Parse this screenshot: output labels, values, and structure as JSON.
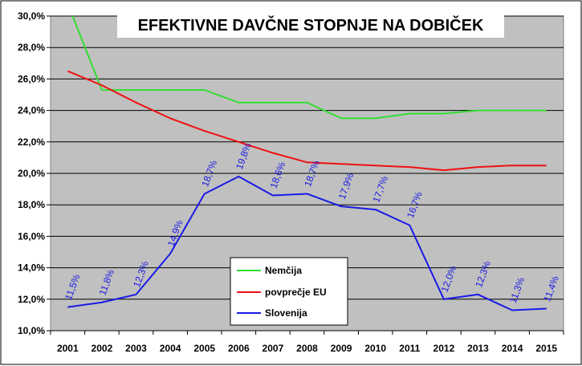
{
  "chart_data": {
    "type": "line",
    "title": "EFEKTIVNE DAVČNE STOPNJE NA DOBIČEK",
    "xlabel": "",
    "ylabel": "",
    "ylim": [
      10,
      30
    ],
    "y_ticks": [
      "10,0%",
      "12,0%",
      "14,0%",
      "16,0%",
      "18,0%",
      "20,0%",
      "22,0%",
      "24,0%",
      "26,0%",
      "28,0%",
      "30,0%"
    ],
    "categories": [
      "2001",
      "2002",
      "2003",
      "2004",
      "2005",
      "2006",
      "2007",
      "2008",
      "2009",
      "2010",
      "2011",
      "2012",
      "2013",
      "2014",
      "2015"
    ],
    "grid": true,
    "legend_position": "bottom-center",
    "colors": {
      "plot_bg": "#c0c0c0",
      "grid": "#000000"
    },
    "series": [
      {
        "name": "Nemčija",
        "color": "#33dd33",
        "values": [
          30.8,
          25.3,
          25.3,
          25.3,
          25.3,
          24.5,
          24.5,
          24.5,
          23.5,
          23.5,
          23.8,
          23.8,
          24.0,
          24.0,
          24.0
        ]
      },
      {
        "name": "povprečje EU",
        "color": "#ee1111",
        "values": [
          26.5,
          25.6,
          24.5,
          23.5,
          22.7,
          22.0,
          21.3,
          20.7,
          20.6,
          20.5,
          20.4,
          20.2,
          20.4,
          20.5,
          20.5
        ]
      },
      {
        "name": "Slovenija",
        "color": "#1a1ae6",
        "values": [
          11.5,
          11.8,
          12.3,
          14.9,
          18.7,
          19.8,
          18.6,
          18.7,
          17.9,
          17.7,
          16.7,
          12.0,
          12.3,
          11.3,
          11.4
        ],
        "labels": [
          "11,5%",
          "11,8%",
          "12,3%",
          "14,9%",
          "18,7%",
          "19,8%",
          "18,6%",
          "18,7%",
          "17,9%",
          "17,7%",
          "16,7%",
          "12,0%",
          "12,3%",
          "11,3%",
          "11,4%"
        ]
      }
    ]
  }
}
